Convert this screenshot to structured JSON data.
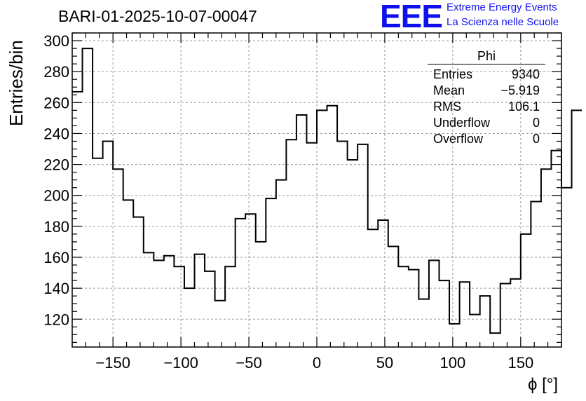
{
  "header": {
    "title": "BARI-01-2025-10-07-00047",
    "logo_text": "EEE",
    "logo_line1": "Extreme Energy Events",
    "logo_line2": "La Scienza nelle Scuole"
  },
  "stats_box": {
    "title": "Phi",
    "rows": [
      {
        "label": "Entries",
        "value": "9340"
      },
      {
        "label": "Mean",
        "value": "−5.919"
      },
      {
        "label": "RMS",
        "value": "106.1"
      },
      {
        "label": "Underflow",
        "value": "0"
      },
      {
        "label": "Overflow",
        "value": "0"
      }
    ]
  },
  "chart_data": {
    "type": "histogram",
    "title": "BARI-01-2025-10-07-00047",
    "xlabel": "ϕ [°]",
    "ylabel": "Entries/bin",
    "xlim": [
      -180,
      180
    ],
    "ylim": [
      102,
      305
    ],
    "bin_width": 7.5,
    "grid": true,
    "x_ticks": [
      -150,
      -100,
      -50,
      0,
      50,
      100,
      150
    ],
    "x_tick_labels": [
      "−150",
      "−100",
      "−50",
      "0",
      "50",
      "100",
      "150"
    ],
    "y_ticks": [
      120,
      140,
      160,
      180,
      200,
      220,
      240,
      260,
      280,
      300
    ],
    "y_tick_labels": [
      "120",
      "140",
      "160",
      "180",
      "200",
      "220",
      "240",
      "260",
      "280",
      "300"
    ],
    "values": [
      267,
      295,
      224,
      235,
      217,
      197,
      186,
      163,
      158,
      161,
      154,
      140,
      162,
      151,
      132,
      154,
      185,
      188,
      170,
      198,
      210,
      236,
      252,
      234,
      255,
      258,
      235,
      223,
      233,
      178,
      184,
      167,
      154,
      152,
      133,
      158,
      145,
      117,
      144,
      123,
      135,
      111,
      143,
      146,
      175,
      196,
      217,
      229,
      205,
      255
    ]
  }
}
